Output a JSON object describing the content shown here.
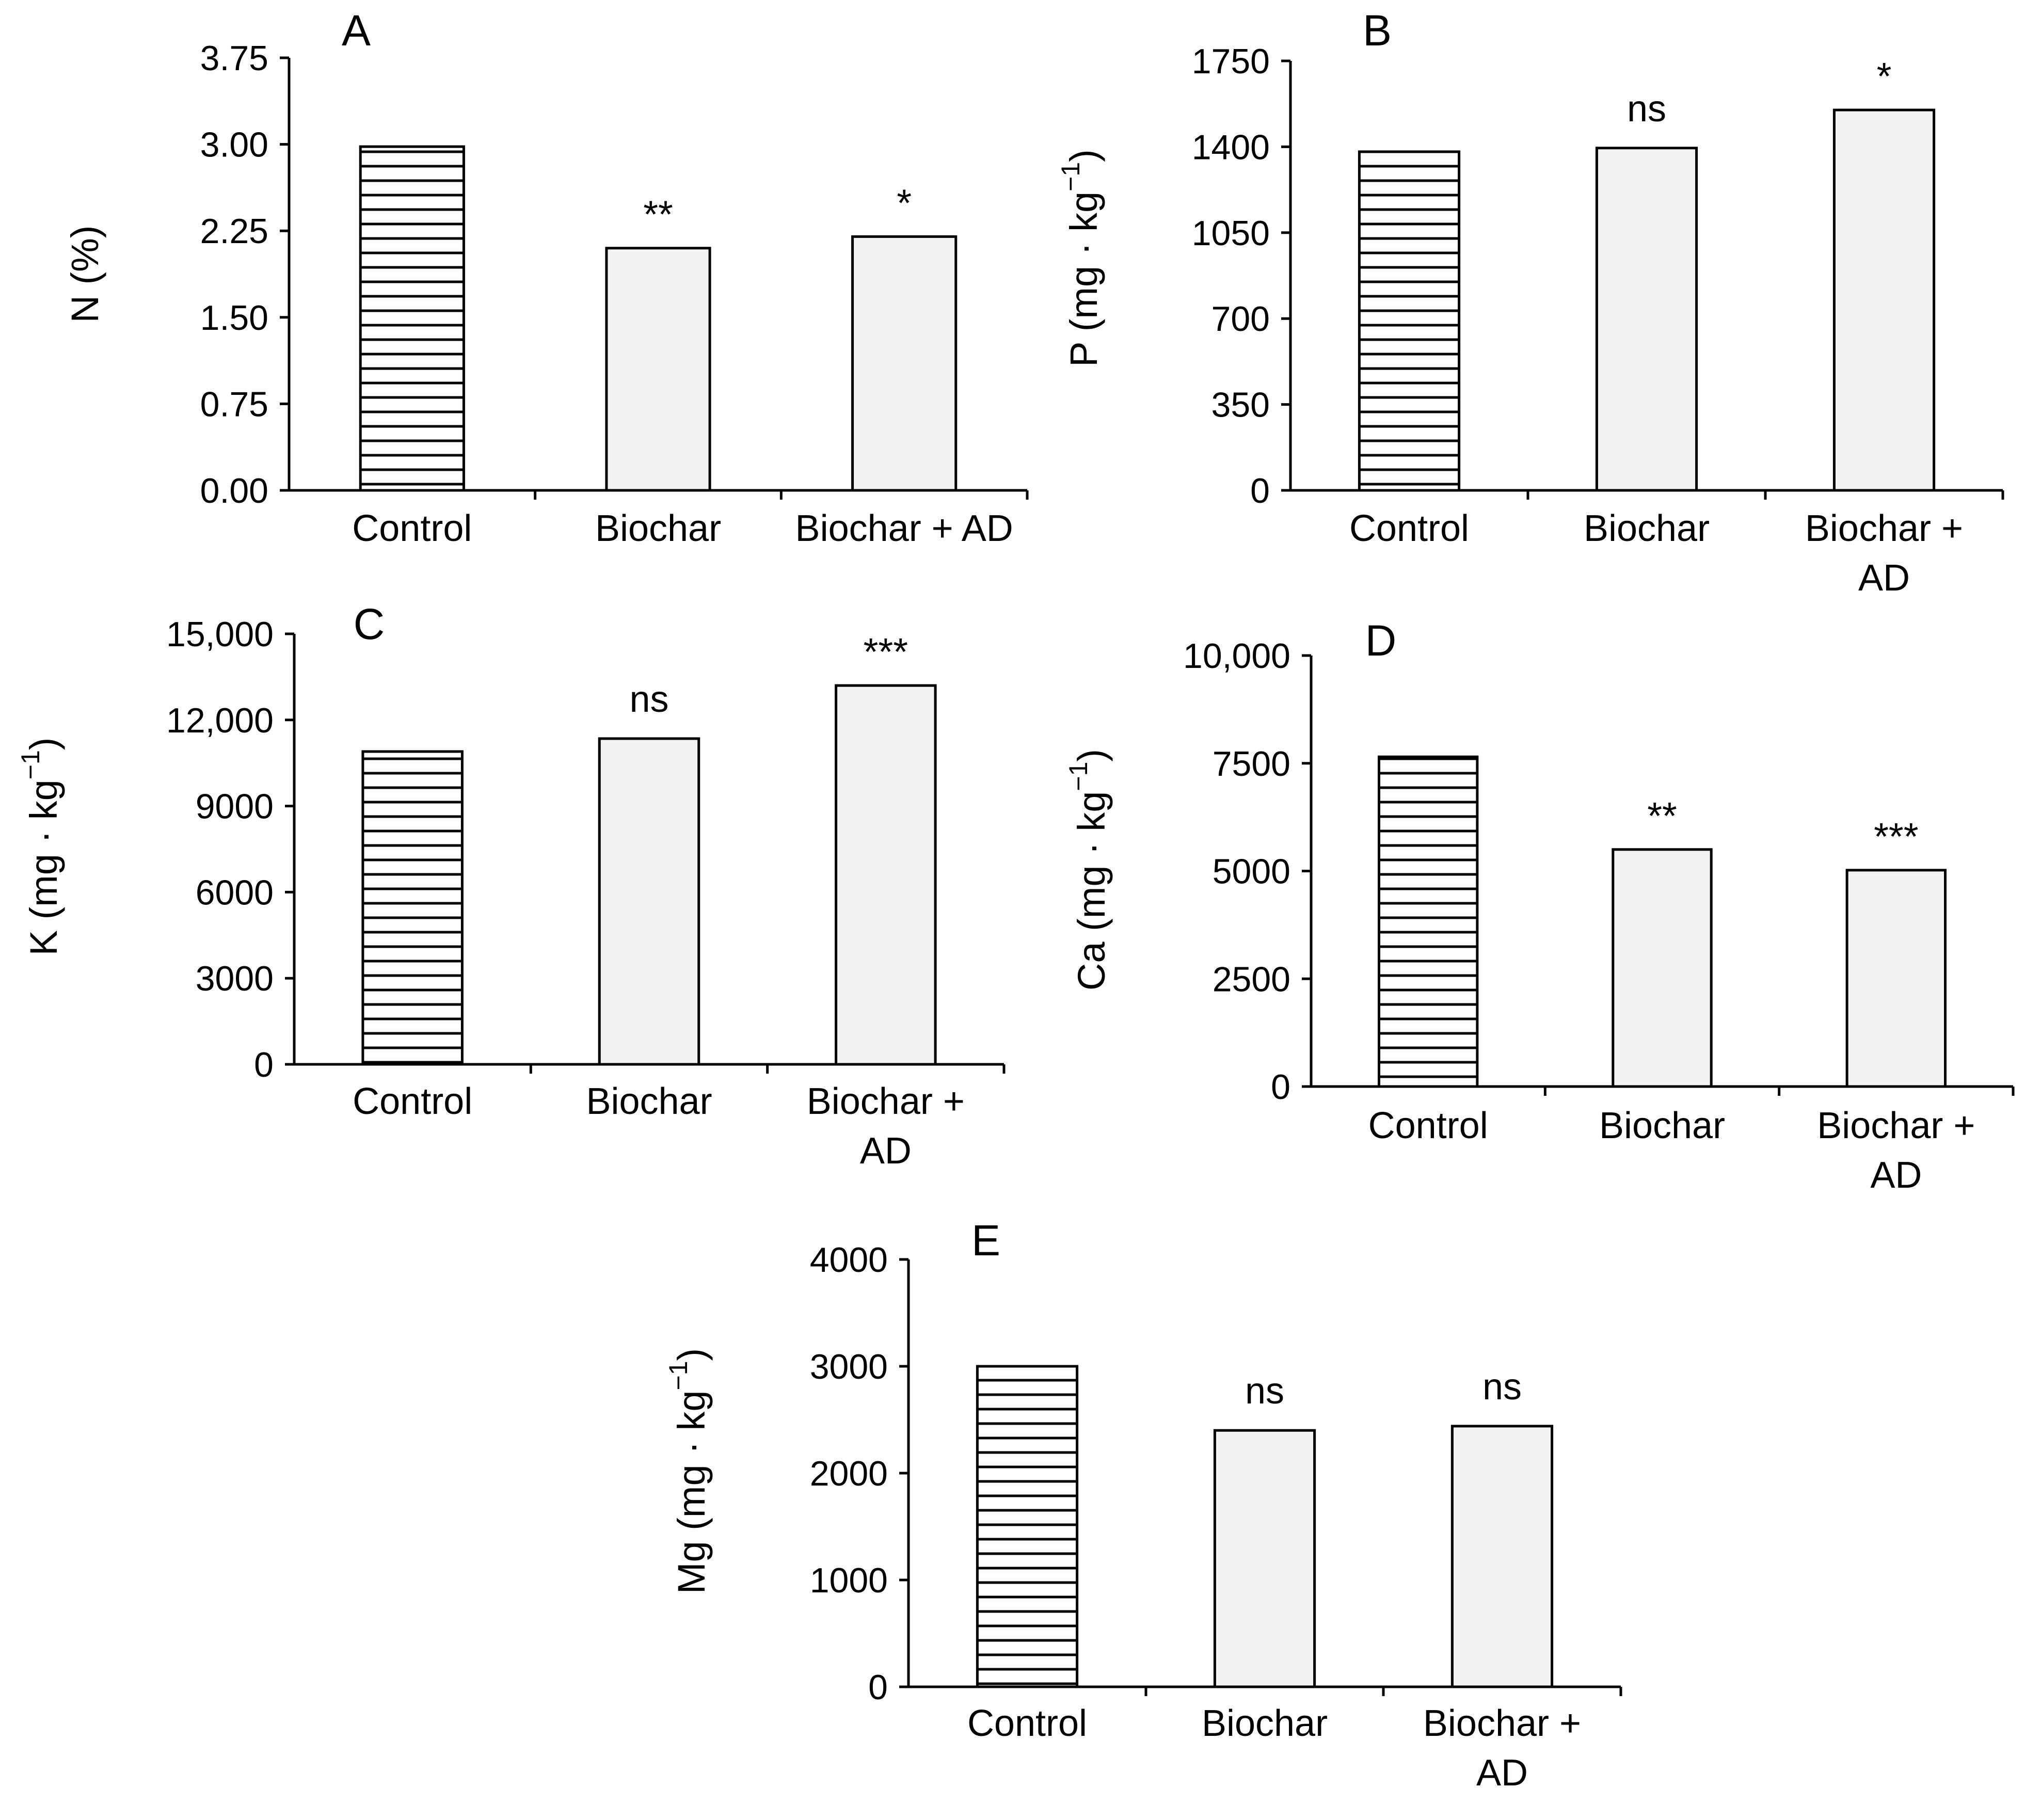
{
  "chart_data": [
    {
      "panel_label": "A",
      "type": "bar",
      "categories": [
        "Control",
        "Biochar",
        "Biochar + AD"
      ],
      "category_lines": [
        [
          "Control"
        ],
        [
          "Biochar"
        ],
        [
          "Biochar + AD"
        ]
      ],
      "values": [
        2.98,
        2.1,
        2.2
      ],
      "significance": [
        "",
        "**",
        "*"
      ],
      "patterns": [
        "horizontal-stripes",
        "light-gray",
        "light-gray"
      ],
      "ylabel": "N (%)",
      "ylabel_parts": {
        "main": "N (%)",
        "sup": ""
      },
      "ylim": [
        0,
        3.75
      ],
      "yticks": [
        "0.00",
        "0.75",
        "1.50",
        "2.25",
        "3.00",
        "3.75"
      ],
      "ytick_values": [
        0,
        0.75,
        1.5,
        2.25,
        3.0,
        3.75
      ]
    },
    {
      "panel_label": "B",
      "type": "bar",
      "categories": [
        "Control",
        "Biochar",
        "Biochar + AD"
      ],
      "category_lines": [
        [
          "Control"
        ],
        [
          "Biochar"
        ],
        [
          "Biochar +",
          "AD"
        ]
      ],
      "values": [
        1380,
        1395,
        1550
      ],
      "significance": [
        "",
        "ns",
        "*"
      ],
      "patterns": [
        "horizontal-stripes",
        "light-gray",
        "light-gray"
      ],
      "ylabel": "P (mg · kg−1)",
      "ylabel_parts": {
        "main": "P (mg · kg",
        "sup": "−1",
        "close": ")"
      },
      "ylim": [
        0,
        1750
      ],
      "yticks": [
        "0",
        "350",
        "700",
        "1050",
        "1400",
        "1750"
      ],
      "ytick_values": [
        0,
        350,
        700,
        1050,
        1400,
        1750
      ]
    },
    {
      "panel_label": "C",
      "type": "bar",
      "categories": [
        "Control",
        "Biochar",
        "Biochar + AD"
      ],
      "category_lines": [
        [
          "Control"
        ],
        [
          "Biochar"
        ],
        [
          "Biochar +",
          "AD"
        ]
      ],
      "values": [
        10900,
        11350,
        13200
      ],
      "significance": [
        "",
        "ns",
        "***"
      ],
      "patterns": [
        "horizontal-stripes",
        "light-gray",
        "light-gray"
      ],
      "ylabel": "K (mg · kg−1)",
      "ylabel_parts": {
        "main": "K (mg · kg",
        "sup": "−1",
        "close": ")"
      },
      "ylim": [
        0,
        15000
      ],
      "yticks": [
        "0",
        "3000",
        "6000",
        "9000",
        "12,000",
        "15,000"
      ],
      "ytick_values": [
        0,
        3000,
        6000,
        9000,
        12000,
        15000
      ]
    },
    {
      "panel_label": "D",
      "type": "bar",
      "categories": [
        "Control",
        "Biochar",
        "Biochar + AD"
      ],
      "category_lines": [
        [
          "Control"
        ],
        [
          "Biochar"
        ],
        [
          "Biochar +",
          "AD"
        ]
      ],
      "values": [
        7650,
        5500,
        5020
      ],
      "significance": [
        "",
        "**",
        "***"
      ],
      "patterns": [
        "horizontal-stripes",
        "light-gray",
        "light-gray"
      ],
      "ylabel": "Ca (mg · kg−1)",
      "ylabel_parts": {
        "main": "Ca (mg · kg",
        "sup": "−1",
        "close": ")"
      },
      "ylim": [
        0,
        10000
      ],
      "yticks": [
        "0",
        "2500",
        "5000",
        "7500",
        "10,000"
      ],
      "ytick_values": [
        0,
        2500,
        5000,
        7500,
        10000
      ]
    },
    {
      "panel_label": "E",
      "type": "bar",
      "categories": [
        "Control",
        "Biochar",
        "Biochar + AD"
      ],
      "category_lines": [
        [
          "Control"
        ],
        [
          "Biochar"
        ],
        [
          "Biochar +",
          "AD"
        ]
      ],
      "values": [
        3000,
        2400,
        2440
      ],
      "significance": [
        "",
        "ns",
        "ns"
      ],
      "patterns": [
        "horizontal-stripes",
        "light-gray",
        "light-gray"
      ],
      "ylabel": "Mg (mg · kg−1)",
      "ylabel_parts": {
        "main": "Mg (mg · kg",
        "sup": "−1",
        "close": ")"
      },
      "ylim": [
        0,
        4000
      ],
      "yticks": [
        "0",
        "1000",
        "2000",
        "3000",
        "4000"
      ],
      "ytick_values": [
        0,
        1000,
        2000,
        3000,
        4000
      ]
    }
  ],
  "colors": {
    "bar_fill_treatment": "#f2f2f2",
    "bar_fill_control": "#ffffff",
    "stroke": "#000000"
  }
}
